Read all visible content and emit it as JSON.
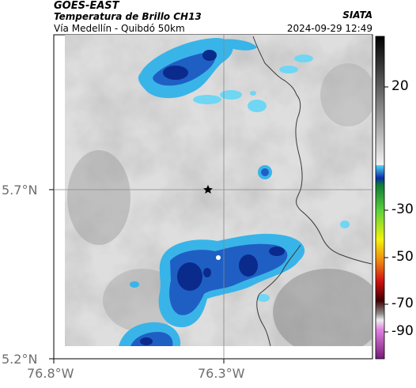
{
  "header": {
    "satellite": "GOES-EAST",
    "product": "Temperatura de Brillo CH13",
    "route": "Vía Medellín - Quibdó 50km",
    "agency": "SIATA",
    "datetime": "2024-09-29 12:49"
  },
  "axes": {
    "x_ticks": [
      "76.8°W",
      "76.3°W"
    ],
    "y_ticks": [
      "5.7°N",
      "5.2°N"
    ]
  },
  "colorbar": {
    "tick_labels": [
      "20",
      "-30",
      "-50",
      "-70",
      "-90"
    ]
  },
  "colors": {
    "deep_blue": "#0a2a8c",
    "blue": "#1f5fc4",
    "cyan": "#39b4e8",
    "light_cyan": "#6fd6f4",
    "border": "#3a3a3a"
  },
  "marker": {
    "icon": "star-icon"
  }
}
